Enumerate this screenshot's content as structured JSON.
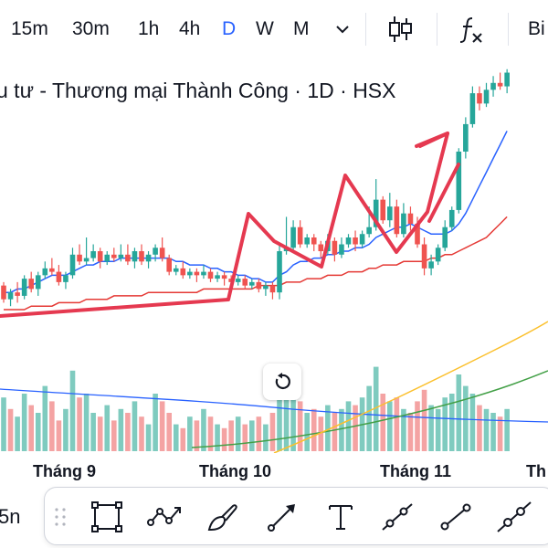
{
  "toolbar": {
    "intervals": [
      {
        "label": "15m",
        "active": false
      },
      {
        "label": "30m",
        "active": false
      },
      {
        "label": "1h",
        "active": false
      },
      {
        "label": "4h",
        "active": false
      },
      {
        "label": "D",
        "active": true
      },
      {
        "label": "W",
        "active": false
      },
      {
        "label": "M",
        "active": false
      }
    ],
    "more_icon": "chevron-down-icon",
    "chart_type_icon": "candles-icon",
    "indicators_icon": "fx-icon",
    "cutoff_label": "Bi"
  },
  "legend": {
    "title": "u tư - Thương mại Thành Công · 1D · HSX"
  },
  "time_axis": {
    "labels": [
      "Tháng 9",
      "Tháng 10",
      "Tháng 11",
      "Th"
    ]
  },
  "bottom": {
    "left_interval_label": "5n"
  },
  "drawing_tools": [
    "drag-handle-icon",
    "rectangle-icon",
    "path-icon",
    "brush-icon",
    "arrow-icon",
    "text-icon",
    "ray-icon",
    "trend-line-icon",
    "extended-line-icon"
  ],
  "colors": {
    "up": "#26a69a",
    "down": "#ef5350",
    "volume_up": "#7fcbbf",
    "volume_down": "#f4a3a3",
    "ma_fast": "#2962ff",
    "ma_mid": "#e53935",
    "ma_slow": "#fbc02d",
    "ma_slowest": "#43a047",
    "pattern_line": "#e53950",
    "active_interval": "#2962ff"
  },
  "chart_data": {
    "type": "candlestick",
    "symbol_description": "u tư - Thương mại Thành Công · 1D · HSX",
    "x_labels": [
      "Tháng 9",
      "Tháng 10",
      "Tháng 11",
      "Th"
    ],
    "candles": [
      [
        81,
        77,
        82,
        76
      ],
      [
        77,
        79,
        80,
        75
      ],
      [
        79,
        78,
        82,
        76
      ],
      [
        78,
        83,
        84,
        77
      ],
      [
        83,
        80,
        85,
        79
      ],
      [
        80,
        84,
        85,
        78
      ],
      [
        84,
        86,
        88,
        83
      ],
      [
        86,
        85,
        89,
        84
      ],
      [
        85,
        82,
        87,
        81
      ],
      [
        82,
        84,
        85,
        80
      ],
      [
        84,
        90,
        92,
        83
      ],
      [
        90,
        88,
        93,
        87
      ],
      [
        88,
        89,
        95,
        87
      ],
      [
        89,
        91,
        93,
        88
      ],
      [
        91,
        88,
        92,
        86
      ],
      [
        88,
        90,
        91,
        87
      ],
      [
        90,
        89,
        92,
        88
      ],
      [
        89,
        90,
        93,
        88
      ],
      [
        90,
        88,
        93,
        87
      ],
      [
        88,
        91,
        92,
        86
      ],
      [
        91,
        88,
        93,
        87
      ],
      [
        88,
        90,
        91,
        86
      ],
      [
        90,
        92,
        93,
        88
      ],
      [
        92,
        89,
        95,
        88
      ],
      [
        89,
        85,
        90,
        84
      ],
      [
        85,
        86,
        87,
        84
      ],
      [
        86,
        84,
        88,
        83
      ],
      [
        84,
        85,
        86,
        83
      ],
      [
        85,
        84,
        86,
        82
      ],
      [
        84,
        85,
        87,
        83
      ],
      [
        85,
        83,
        86,
        82
      ],
      [
        83,
        84,
        85,
        82
      ],
      [
        84,
        83,
        85,
        81
      ],
      [
        83,
        82,
        84,
        80
      ],
      [
        82,
        83,
        84,
        81
      ],
      [
        83,
        81,
        84,
        80
      ],
      [
        81,
        82,
        83,
        80
      ],
      [
        82,
        80,
        83,
        79
      ],
      [
        80,
        81,
        82,
        78
      ],
      [
        81,
        79,
        82,
        77
      ],
      [
        79,
        91,
        93,
        77
      ],
      [
        91,
        92,
        101,
        90
      ],
      [
        92,
        98,
        100,
        91
      ],
      [
        98,
        93,
        100,
        92
      ],
      [
        93,
        95,
        96,
        92
      ],
      [
        95,
        93,
        96,
        91
      ],
      [
        93,
        91,
        94,
        89
      ],
      [
        91,
        94,
        96,
        90
      ],
      [
        94,
        90,
        95,
        88
      ],
      [
        90,
        93,
        95,
        89
      ],
      [
        93,
        95,
        96,
        92
      ],
      [
        95,
        93,
        97,
        91
      ],
      [
        93,
        96,
        97,
        92
      ],
      [
        96,
        98,
        104,
        95
      ],
      [
        98,
        106,
        112,
        97
      ],
      [
        106,
        100,
        107,
        99
      ],
      [
        100,
        104,
        108,
        98
      ],
      [
        104,
        96,
        106,
        95
      ],
      [
        96,
        102,
        105,
        95
      ],
      [
        102,
        99,
        104,
        97
      ],
      [
        99,
        93,
        101,
        92
      ],
      [
        93,
        86,
        95,
        84
      ],
      [
        86,
        88,
        90,
        84
      ],
      [
        88,
        92,
        93,
        87
      ],
      [
        92,
        98,
        100,
        91
      ],
      [
        98,
        103,
        104,
        97
      ],
      [
        103,
        120,
        121,
        102
      ],
      [
        120,
        128,
        130,
        118
      ],
      [
        128,
        137,
        139,
        127
      ],
      [
        137,
        134,
        139,
        132
      ],
      [
        134,
        138,
        140,
        133
      ],
      [
        138,
        140,
        142,
        136
      ],
      [
        140,
        139,
        143,
        138
      ],
      [
        139,
        143,
        144,
        137
      ]
    ],
    "ylim": [
      70,
      145
    ],
    "moving_averages": [
      {
        "color": "#2962ff",
        "values": [
          79,
          79,
          80,
          80,
          81,
          82,
          83,
          84,
          84,
          84,
          85,
          86,
          87,
          87,
          88,
          88,
          88,
          89,
          89,
          89,
          89,
          89,
          89,
          89,
          89,
          88,
          88,
          87,
          87,
          87,
          86,
          86,
          85,
          85,
          84,
          84,
          83,
          83,
          82,
          82,
          84,
          85,
          87,
          88,
          88,
          89,
          89,
          90,
          90,
          91,
          91,
          92,
          92,
          93,
          95,
          96,
          97,
          98,
          98,
          99,
          98,
          97,
          96,
          96,
          96,
          97,
          99,
          102,
          106,
          110,
          114,
          118,
          122,
          126
        ]
      },
      {
        "color": "#e53935",
        "values": [
          74,
          74,
          74,
          74,
          75,
          75,
          75,
          75,
          76,
          76,
          76,
          76,
          77,
          77,
          77,
          77,
          78,
          78,
          78,
          78,
          78,
          79,
          79,
          79,
          79,
          79,
          79,
          79,
          79,
          80,
          80,
          80,
          80,
          80,
          80,
          80,
          80,
          81,
          81,
          81,
          81,
          82,
          82,
          82,
          83,
          83,
          83,
          84,
          84,
          84,
          85,
          85,
          85,
          86,
          86,
          87,
          87,
          87,
          88,
          88,
          88,
          88,
          89,
          89,
          90,
          90,
          91,
          92,
          93,
          94,
          95,
          97,
          99,
          101
        ]
      }
    ],
    "volume": [
      {
        "v": 28,
        "up": true
      },
      {
        "v": 22,
        "up": false
      },
      {
        "v": 18,
        "up": true
      },
      {
        "v": 30,
        "up": true
      },
      {
        "v": 24,
        "up": false
      },
      {
        "v": 20,
        "up": true
      },
      {
        "v": 34,
        "up": true
      },
      {
        "v": 26,
        "up": false
      },
      {
        "v": 16,
        "up": false
      },
      {
        "v": 22,
        "up": true
      },
      {
        "v": 42,
        "up": true
      },
      {
        "v": 28,
        "up": false
      },
      {
        "v": 30,
        "up": true
      },
      {
        "v": 20,
        "up": true
      },
      {
        "v": 18,
        "up": false
      },
      {
        "v": 24,
        "up": true
      },
      {
        "v": 16,
        "up": false
      },
      {
        "v": 22,
        "up": true
      },
      {
        "v": 20,
        "up": false
      },
      {
        "v": 26,
        "up": true
      },
      {
        "v": 18,
        "up": false
      },
      {
        "v": 14,
        "up": true
      },
      {
        "v": 30,
        "up": true
      },
      {
        "v": 26,
        "up": false
      },
      {
        "v": 20,
        "up": false
      },
      {
        "v": 14,
        "up": true
      },
      {
        "v": 12,
        "up": false
      },
      {
        "v": 18,
        "up": true
      },
      {
        "v": 16,
        "up": false
      },
      {
        "v": 22,
        "up": true
      },
      {
        "v": 18,
        "up": false
      },
      {
        "v": 14,
        "up": true
      },
      {
        "v": 12,
        "up": false
      },
      {
        "v": 16,
        "up": false
      },
      {
        "v": 18,
        "up": true
      },
      {
        "v": 14,
        "up": false
      },
      {
        "v": 16,
        "up": true
      },
      {
        "v": 18,
        "up": false
      },
      {
        "v": 14,
        "up": true
      },
      {
        "v": 20,
        "up": false
      },
      {
        "v": 40,
        "up": true
      },
      {
        "v": 44,
        "up": true
      },
      {
        "v": 30,
        "up": true
      },
      {
        "v": 26,
        "up": false
      },
      {
        "v": 20,
        "up": true
      },
      {
        "v": 22,
        "up": false
      },
      {
        "v": 18,
        "up": false
      },
      {
        "v": 24,
        "up": true
      },
      {
        "v": 20,
        "up": false
      },
      {
        "v": 22,
        "up": true
      },
      {
        "v": 26,
        "up": true
      },
      {
        "v": 24,
        "up": false
      },
      {
        "v": 28,
        "up": true
      },
      {
        "v": 34,
        "up": true
      },
      {
        "v": 44,
        "up": true
      },
      {
        "v": 30,
        "up": false
      },
      {
        "v": 26,
        "up": true
      },
      {
        "v": 28,
        "up": false
      },
      {
        "v": 22,
        "up": true
      },
      {
        "v": 20,
        "up": false
      },
      {
        "v": 26,
        "up": false
      },
      {
        "v": 32,
        "up": false
      },
      {
        "v": 24,
        "up": true
      },
      {
        "v": 22,
        "up": true
      },
      {
        "v": 28,
        "up": true
      },
      {
        "v": 30,
        "up": true
      },
      {
        "v": 40,
        "up": true
      },
      {
        "v": 34,
        "up": true
      },
      {
        "v": 30,
        "up": true
      },
      {
        "v": 24,
        "up": false
      },
      {
        "v": 22,
        "up": true
      },
      {
        "v": 20,
        "up": true
      },
      {
        "v": 18,
        "up": false
      },
      {
        "v": 22,
        "up": true
      }
    ]
  }
}
